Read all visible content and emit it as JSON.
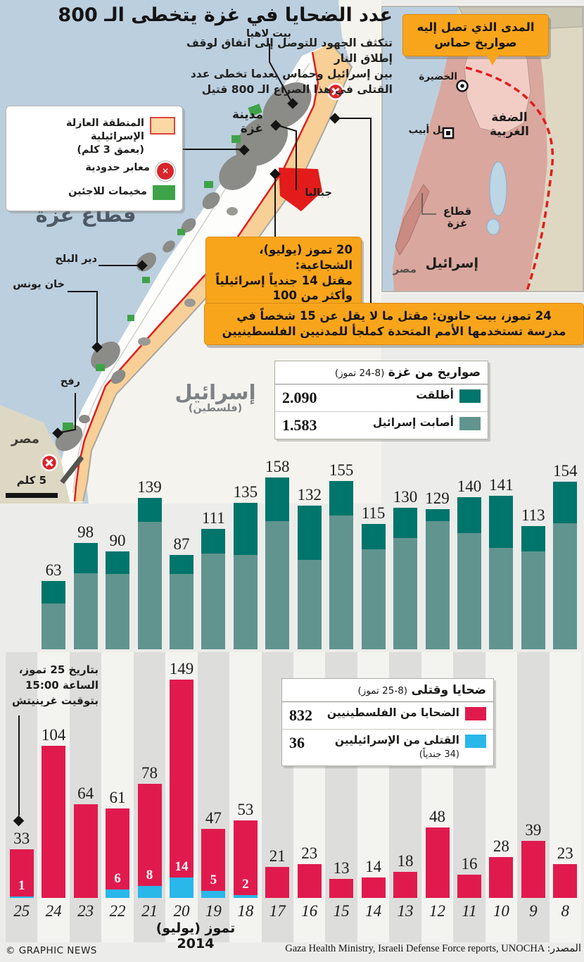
{
  "header": {
    "title": "عدد الضحايا في غزة يتخطى الـ 800",
    "intro": "تتكثف الجهود للتوصل إلى اتفاق لوقف إطلاق النار\nبين إسرائيل وحماس بعدما تخطى عدد\nالقتلى في هذا الصراع الـ 800 قتيل"
  },
  "legend": {
    "items": [
      {
        "label": "المنطقة العازلة الإسرائيلية\n(بعمق 3 كلم)",
        "swatch": "buffer-zone"
      },
      {
        "label": "معابر حدودية",
        "swatch": "border-crossing"
      },
      {
        "label": "مخيمات للاجئين",
        "swatch": "refugee-camp"
      }
    ],
    "crossing_glyph": "✕"
  },
  "range_map": {
    "callout": "المدى الذي تصل إليه\nصواريخ حماس",
    "labels": {
      "hadera": "الخضيرة",
      "tel_aviv": "تل أبيب",
      "west_bank": "الضفة الغربية",
      "gaza_strip": "قطاع غزة",
      "israel": "إسرائيل",
      "egypt": "مصر"
    }
  },
  "gaza_map": {
    "labels": {
      "beit_lahia": "بيت لاهيا",
      "jabalia": "جباليا",
      "gaza_city": "مدينة غزة",
      "deir_al_balah": "دير البلح",
      "khan_younis": "خان يونس",
      "rafah": "رفح",
      "gaza_strip": "قطاع غزة",
      "egypt": "مصر",
      "israel": "إسرائيل",
      "israel_sub": "(فلسطين)",
      "scale": "5 كلم"
    }
  },
  "callouts": {
    "shujaiyya": "20 تموز (يوليو)، الشجاعية:\nمقتل 14 جندياً إسرائيلياً\nوأكثر من 100 فلسطيني",
    "beit_hanoun": "24 تموز، بيت حانون: مقتل ما لا يقل عن 15 شخصاً في\nمدرسة تستخدمها الأمم المتحدة كملجأ للمدنيين الفلسطينيين"
  },
  "rockets_table": {
    "title": "صواريخ من غزة",
    "range": "(8-24 تموز)",
    "rows": [
      {
        "label": "أطلقت",
        "value": "2.090",
        "color": "#00756b"
      },
      {
        "label": "أصابت إسرائيل",
        "value": "1.583",
        "color": "#61948f"
      }
    ]
  },
  "casualties_table": {
    "title": "ضحايا وقتلى",
    "range": "(8-25 تموز)",
    "rows": [
      {
        "label": "الضحايا من الفلسطينيين",
        "sub": "",
        "value": "832",
        "color": "#e11a4e"
      },
      {
        "label": "القتلى من الإسرائيليين",
        "sub": "(34 جندياً)",
        "value": "36",
        "color": "#2ab7ea"
      }
    ]
  },
  "annotation": "بتاريخ 25 تموز،\nالساعة 15:00\nبتوقيت غرينيتش",
  "axis": {
    "month": "تموز (يوليو) 2014"
  },
  "footer": {
    "credit": "© GRAPHIC NEWS",
    "source": "المصدر: Gaza Health Ministry, Israeli Defense Force reports, UNOCHA"
  },
  "colors": {
    "rockets_fired": "#00756b",
    "rockets_hit": "#61948f",
    "palestinian": "#e11a4e",
    "israeli": "#2ab7ea",
    "callout_bg": "#f9a51c",
    "sea": "#bccfdf",
    "stripe_gray": "#dddddb",
    "stripe_light": "#f3f3f0"
  },
  "chart_data": [
    {
      "type": "bar",
      "stacked": true,
      "title": "صواريخ من غزة (8-24 تموز)",
      "xlabel": "تموز (يوليو) 2014",
      "categories": [
        24,
        23,
        22,
        21,
        20,
        19,
        18,
        17,
        16,
        15,
        14,
        13,
        12,
        11,
        10,
        9,
        8
      ],
      "series": [
        {
          "name": "أطلقت",
          "values": [
            63,
            98,
            90,
            139,
            87,
            111,
            135,
            158,
            132,
            155,
            115,
            130,
            129,
            140,
            141,
            113,
            154
          ]
        },
        {
          "name": "أصابت إسرائيل",
          "values": [
            42,
            70,
            69,
            117,
            69,
            88,
            87,
            118,
            82,
            123,
            92,
            102,
            118,
            107,
            93,
            90,
            116
          ],
          "note": "estimated from bar shading; totals 2090 fired / 1583 hit"
        }
      ],
      "totals": {
        "fired": "2.090",
        "hit_israel": "1.583"
      },
      "legend_position": "table-above",
      "grid": false
    },
    {
      "type": "bar",
      "stacked": true,
      "title": "ضحايا وقتلى (8-25 تموز)",
      "xlabel": "تموز (يوليو) 2014",
      "categories": [
        25,
        24,
        23,
        22,
        21,
        20,
        19,
        18,
        17,
        16,
        15,
        14,
        13,
        12,
        11,
        10,
        9,
        8
      ],
      "series": [
        {
          "name": "الضحايا من الفلسطينيين",
          "values": [
            33,
            104,
            64,
            61,
            78,
            149,
            47,
            53,
            21,
            23,
            13,
            14,
            18,
            48,
            16,
            28,
            39,
            23
          ]
        },
        {
          "name": "القتلى من الإسرائيليين",
          "values": [
            1,
            0,
            0,
            6,
            8,
            14,
            5,
            2,
            0,
            0,
            0,
            0,
            0,
            0,
            0,
            0,
            0,
            0
          ]
        }
      ],
      "totals": {
        "palestinian": "832",
        "israeli": "36"
      },
      "legend_position": "table-above",
      "grid": false
    }
  ]
}
